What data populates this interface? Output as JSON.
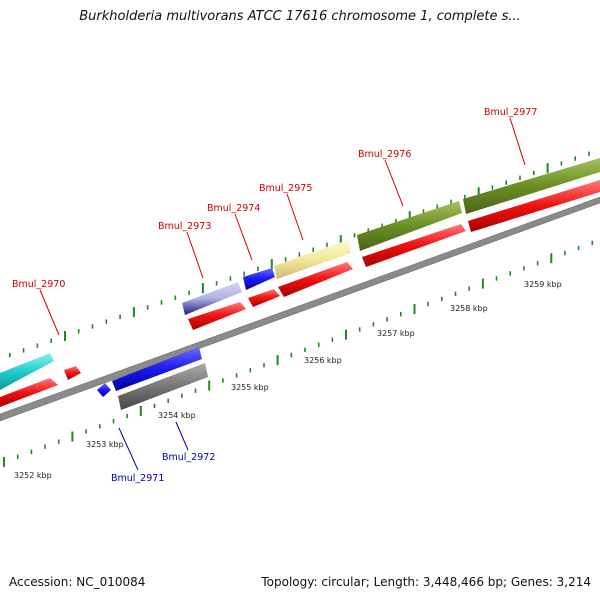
{
  "title": "Burkholderia multivorans ATCC 17616 chromosome 1, complete s...",
  "footer": {
    "accession": "Accession: NC_010084",
    "summary": "Topology: circular; Length: 3,448,466 bp; Genes: 3,214"
  },
  "scale_labels": [
    "3252 kbp",
    "3253 kbp",
    "3254 kbp",
    "3255 kbp",
    "3256 kbp",
    "3257 kbp",
    "3258 kbp",
    "3259 kbp"
  ],
  "genes": [
    {
      "label": "Bmul_2970",
      "color": "#cc0000"
    },
    {
      "label": "Bmul_2971",
      "color": "#0000aa"
    },
    {
      "label": "Bmul_2972",
      "color": "#0000aa"
    },
    {
      "label": "Bmul_2973",
      "color": "#cc0000"
    },
    {
      "label": "Bmul_2974",
      "color": "#cc0000"
    },
    {
      "label": "Bmul_2975",
      "color": "#cc0000"
    },
    {
      "label": "Bmul_2976",
      "color": "#cc0000"
    },
    {
      "label": "Bmul_2977",
      "color": "#cc0000"
    }
  ],
  "colors": {
    "cds": "#ee1111",
    "backbone": "#888888",
    "tick": "#228822",
    "cyan": "#22cccc",
    "blue": "#1a1aee",
    "grey": "#777777",
    "yellow": "#f2e89a",
    "olive": "#6b8e23",
    "lavender": "#b0b0e0"
  }
}
